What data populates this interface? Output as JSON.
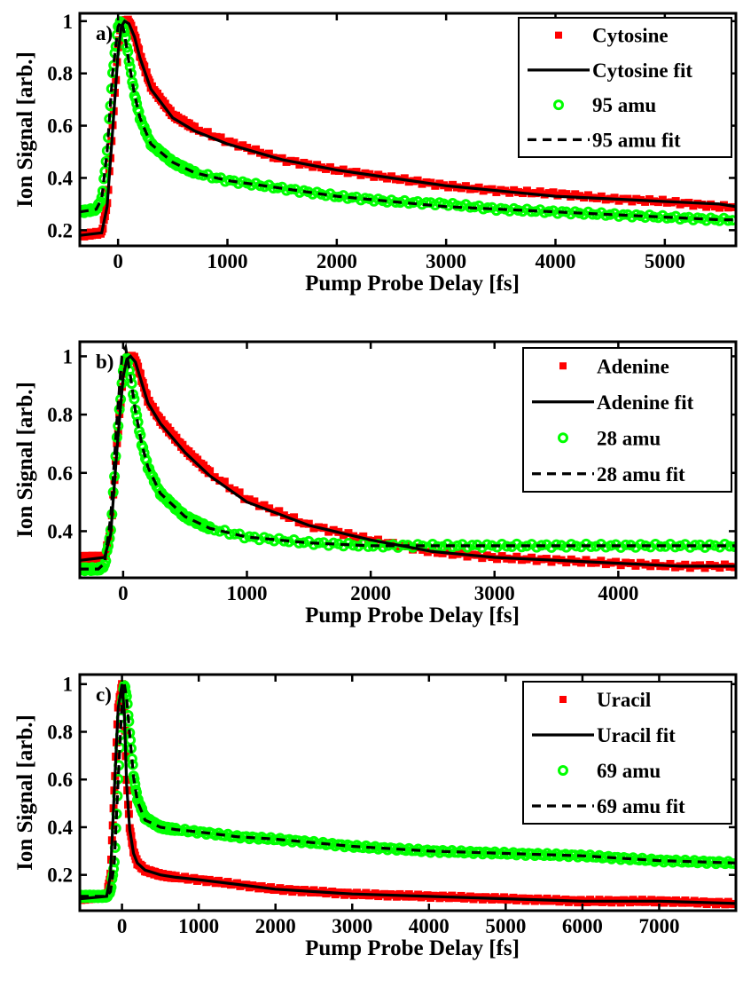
{
  "chart_data": [
    {
      "type": "scatter",
      "panel_label": "a)",
      "xlabel": "Pump Probe Delay [fs]",
      "ylabel": "Ion Signal [arb.]",
      "xlim": [
        -350,
        5650
      ],
      "ylim": [
        0.14,
        1.03
      ],
      "xticks": [
        0,
        1000,
        2000,
        3000,
        4000,
        5000
      ],
      "yticks": [
        0.2,
        0.4,
        0.6,
        0.8,
        1
      ],
      "grid": false,
      "legend_position": "top-right",
      "series": [
        {
          "name": "Cytosine",
          "kind": "markers",
          "marker": "square",
          "color": "#ff0000",
          "x": [
            -350,
            -150,
            -100,
            -50,
            0,
            30,
            60,
            100,
            150,
            200,
            300,
            500,
            700,
            1000,
            1500,
            2000,
            2500,
            3000,
            3500,
            4000,
            4500,
            5000,
            5500,
            5650
          ],
          "y": [
            0.18,
            0.19,
            0.3,
            0.6,
            0.9,
            0.99,
            1.0,
            1.0,
            0.95,
            0.87,
            0.75,
            0.64,
            0.59,
            0.54,
            0.47,
            0.43,
            0.4,
            0.37,
            0.35,
            0.34,
            0.32,
            0.31,
            0.29,
            0.29
          ]
        },
        {
          "name": "Cytosine fit",
          "kind": "line",
          "dash": "solid",
          "color": "#000000",
          "x": [
            -350,
            -150,
            -100,
            -50,
            0,
            30,
            60,
            100,
            150,
            200,
            300,
            500,
            700,
            1000,
            1500,
            2000,
            2500,
            3000,
            3500,
            4000,
            4500,
            5000,
            5500,
            5650
          ],
          "y": [
            0.18,
            0.19,
            0.29,
            0.58,
            0.88,
            0.98,
            1.0,
            0.99,
            0.94,
            0.86,
            0.74,
            0.63,
            0.58,
            0.53,
            0.47,
            0.43,
            0.4,
            0.37,
            0.35,
            0.33,
            0.32,
            0.31,
            0.3,
            0.29
          ]
        },
        {
          "name": "95 amu",
          "kind": "markers",
          "marker": "circle",
          "color": "#00ff00",
          "x": [
            -350,
            -200,
            -150,
            -100,
            -50,
            0,
            30,
            60,
            100,
            150,
            200,
            300,
            500,
            700,
            1000,
            1500,
            2000,
            2500,
            3000,
            3500,
            4000,
            4500,
            5000,
            5500,
            5650
          ],
          "y": [
            0.27,
            0.28,
            0.32,
            0.5,
            0.8,
            0.98,
            1.0,
            0.96,
            0.85,
            0.72,
            0.63,
            0.53,
            0.46,
            0.42,
            0.39,
            0.36,
            0.33,
            0.31,
            0.3,
            0.28,
            0.27,
            0.26,
            0.25,
            0.24,
            0.24
          ]
        },
        {
          "name": "95 amu fit",
          "kind": "line",
          "dash": "dashed",
          "color": "#000000",
          "x": [
            -350,
            -200,
            -150,
            -100,
            -50,
            0,
            30,
            60,
            100,
            150,
            200,
            300,
            500,
            700,
            1000,
            1500,
            2000,
            2500,
            3000,
            3500,
            4000,
            4500,
            5000,
            5500,
            5650
          ],
          "y": [
            0.27,
            0.28,
            0.32,
            0.5,
            0.8,
            0.98,
            1.0,
            0.95,
            0.84,
            0.72,
            0.63,
            0.53,
            0.46,
            0.42,
            0.39,
            0.36,
            0.33,
            0.31,
            0.29,
            0.28,
            0.27,
            0.26,
            0.25,
            0.24,
            0.24
          ]
        }
      ]
    },
    {
      "type": "scatter",
      "panel_label": "b)",
      "xlabel": "Pump Probe Delay [fs]",
      "ylabel": "Ion Signal [arb.]",
      "xlim": [
        -350,
        4950
      ],
      "ylim": [
        0.24,
        1.05
      ],
      "xticks": [
        0,
        1000,
        2000,
        3000,
        4000
      ],
      "yticks": [
        0.4,
        0.6,
        0.8,
        1
      ],
      "grid": false,
      "legend_position": "top-right",
      "series": [
        {
          "name": "Adenine",
          "kind": "markers",
          "marker": "square",
          "color": "#ff0000",
          "x": [
            -350,
            -150,
            -100,
            -50,
            0,
            30,
            60,
            100,
            150,
            200,
            300,
            500,
            700,
            1000,
            1500,
            2000,
            2500,
            3000,
            3500,
            4000,
            4500,
            4950
          ],
          "y": [
            0.31,
            0.31,
            0.4,
            0.7,
            0.94,
            0.99,
            1.0,
            0.99,
            0.92,
            0.85,
            0.78,
            0.68,
            0.6,
            0.51,
            0.42,
            0.37,
            0.33,
            0.31,
            0.3,
            0.29,
            0.28,
            0.28
          ]
        },
        {
          "name": "Adenine fit",
          "kind": "line",
          "dash": "solid",
          "color": "#000000",
          "x": [
            -350,
            -150,
            -100,
            -50,
            0,
            30,
            60,
            100,
            150,
            200,
            300,
            500,
            700,
            1000,
            1500,
            2000,
            2500,
            3000,
            3500,
            4000,
            4500,
            4950
          ],
          "y": [
            0.3,
            0.31,
            0.39,
            0.68,
            0.93,
            0.99,
            1.0,
            0.98,
            0.91,
            0.84,
            0.77,
            0.67,
            0.59,
            0.5,
            0.42,
            0.37,
            0.33,
            0.31,
            0.3,
            0.29,
            0.28,
            0.28
          ]
        },
        {
          "name": "28 amu",
          "kind": "markers",
          "marker": "circle",
          "color": "#00ff00",
          "x": [
            -350,
            -200,
            -150,
            -100,
            -50,
            0,
            30,
            60,
            100,
            150,
            200,
            300,
            500,
            700,
            1000,
            1500,
            2000,
            2500,
            3000,
            3500,
            4000,
            4500,
            4950
          ],
          "y": [
            0.27,
            0.27,
            0.28,
            0.4,
            0.72,
            0.95,
            1.0,
            0.93,
            0.82,
            0.7,
            0.62,
            0.53,
            0.45,
            0.41,
            0.38,
            0.36,
            0.35,
            0.35,
            0.35,
            0.35,
            0.35,
            0.35,
            0.35
          ]
        },
        {
          "name": "28 amu fit",
          "kind": "line",
          "dash": "dashed",
          "color": "#000000",
          "x": [
            -350,
            -200,
            -150,
            -100,
            -50,
            -10,
            20,
            60,
            100,
            150,
            200,
            300,
            500,
            700,
            1000,
            1500,
            2000,
            2500,
            3000,
            3500,
            4000,
            4500,
            4950
          ],
          "y": [
            0.27,
            0.27,
            0.29,
            0.45,
            0.78,
            1.0,
            1.03,
            0.93,
            0.81,
            0.7,
            0.62,
            0.53,
            0.45,
            0.41,
            0.38,
            0.36,
            0.35,
            0.35,
            0.35,
            0.35,
            0.35,
            0.35,
            0.35
          ]
        }
      ]
    },
    {
      "type": "scatter",
      "panel_label": "c)",
      "xlabel": "Pump Probe Delay [fs]",
      "ylabel": "Ion Signal [arb.]",
      "xlim": [
        -550,
        8000
      ],
      "ylim": [
        0.05,
        1.04
      ],
      "xticks": [
        0,
        1000,
        2000,
        3000,
        4000,
        5000,
        6000,
        7000
      ],
      "yticks": [
        0.2,
        0.4,
        0.6,
        0.8,
        1
      ],
      "grid": false,
      "legend_position": "top-right",
      "series": [
        {
          "name": "Uracil",
          "kind": "markers",
          "marker": "square",
          "color": "#ff0000",
          "x": [
            -550,
            -200,
            -150,
            -100,
            -50,
            0,
            30,
            60,
            100,
            150,
            200,
            300,
            500,
            700,
            1000,
            1500,
            2000,
            3000,
            4000,
            5000,
            6000,
            7000,
            8000
          ],
          "y": [
            0.1,
            0.11,
            0.2,
            0.55,
            0.9,
            1.0,
            0.9,
            0.6,
            0.4,
            0.3,
            0.25,
            0.22,
            0.2,
            0.19,
            0.18,
            0.16,
            0.14,
            0.12,
            0.11,
            0.1,
            0.09,
            0.09,
            0.08
          ]
        },
        {
          "name": "Uracil fit",
          "kind": "line",
          "dash": "solid",
          "color": "#000000",
          "x": [
            -550,
            -200,
            -150,
            -100,
            -50,
            0,
            30,
            60,
            100,
            150,
            200,
            300,
            500,
            700,
            1000,
            1500,
            2000,
            3000,
            4000,
            5000,
            6000,
            7000,
            8000
          ],
          "y": [
            0.1,
            0.11,
            0.2,
            0.55,
            0.9,
            1.0,
            0.88,
            0.58,
            0.39,
            0.29,
            0.25,
            0.22,
            0.2,
            0.19,
            0.18,
            0.16,
            0.14,
            0.12,
            0.11,
            0.1,
            0.09,
            0.09,
            0.08
          ]
        },
        {
          "name": "69 amu",
          "kind": "markers",
          "marker": "circle",
          "color": "#00ff00",
          "x": [
            -550,
            -200,
            -150,
            -100,
            -50,
            0,
            30,
            60,
            100,
            150,
            200,
            300,
            500,
            700,
            1000,
            1500,
            2000,
            3000,
            4000,
            5000,
            6000,
            7000,
            8000
          ],
          "y": [
            0.11,
            0.11,
            0.13,
            0.25,
            0.6,
            0.92,
            1.0,
            0.95,
            0.8,
            0.62,
            0.52,
            0.44,
            0.4,
            0.39,
            0.38,
            0.36,
            0.35,
            0.32,
            0.3,
            0.29,
            0.28,
            0.26,
            0.25
          ]
        },
        {
          "name": "69 amu fit",
          "kind": "line",
          "dash": "dashed",
          "color": "#000000",
          "x": [
            -550,
            -200,
            -150,
            -100,
            -50,
            0,
            30,
            60,
            100,
            150,
            200,
            300,
            500,
            700,
            1000,
            1500,
            2000,
            3000,
            4000,
            5000,
            6000,
            7000,
            8000
          ],
          "y": [
            0.11,
            0.11,
            0.13,
            0.25,
            0.6,
            0.92,
            1.0,
            0.94,
            0.79,
            0.61,
            0.51,
            0.43,
            0.4,
            0.39,
            0.38,
            0.36,
            0.35,
            0.32,
            0.3,
            0.29,
            0.28,
            0.26,
            0.25
          ]
        }
      ]
    }
  ]
}
